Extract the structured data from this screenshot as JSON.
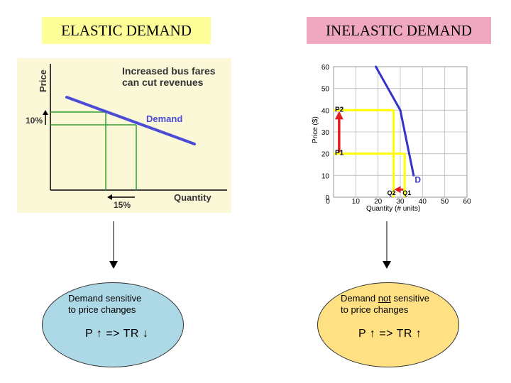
{
  "titles": {
    "left": "ELASTIC DEMAND",
    "right": "INELASTIC DEMAND"
  },
  "elastic_chart": {
    "y_axis_label": "Price",
    "x_axis_label": "Quantity",
    "headline_line1": "Increased bus fares",
    "headline_line2": "can cut revenues",
    "curve_label": "Demand",
    "price_change_label": "10%",
    "quantity_change_label": "15%"
  },
  "chart_data": {
    "type": "line",
    "title": "",
    "xlabel": "Quantity (# units)",
    "ylabel": "Price ($)",
    "xlim": [
      0,
      60
    ],
    "ylim": [
      0,
      60
    ],
    "x_ticks": [
      "0",
      "10",
      "20",
      "30",
      "40",
      "50",
      "60"
    ],
    "y_ticks": [
      "0",
      "10",
      "20",
      "30",
      "40",
      "50",
      "60"
    ],
    "grid": true,
    "series": [
      {
        "name": "D",
        "x": [
          19,
          30,
          36
        ],
        "y": [
          60,
          40,
          10
        ]
      }
    ],
    "points": [
      {
        "label": "P2",
        "x": 27,
        "y": 40,
        "price_label": "P2",
        "qty_label": "Q2"
      },
      {
        "label": "P1",
        "x": 32,
        "y": 20,
        "price_label": "P1",
        "qty_label": "Q1"
      }
    ],
    "curve_label": "D",
    "q2_label": "Q2",
    "q1_label": "Q1",
    "p2_label": "P2",
    "p1_label": "P1"
  },
  "colors": {
    "demand_left": "#4b4bd6",
    "demand_right": "#3333cc",
    "guides_left": "#2ea02e",
    "guides_right": "#ffff00",
    "arrows": "#e02020"
  },
  "ellipses": {
    "left": {
      "text_line1": "Demand sensitive",
      "text_line2": "to price changes",
      "formula": "P ↑ => TR ↓"
    },
    "right": {
      "text_pre": "Demand ",
      "text_underlined": "not",
      "text_post": " sensitive",
      "text_line2": "to price changes",
      "formula": "P ↑ => TR ↑"
    }
  }
}
